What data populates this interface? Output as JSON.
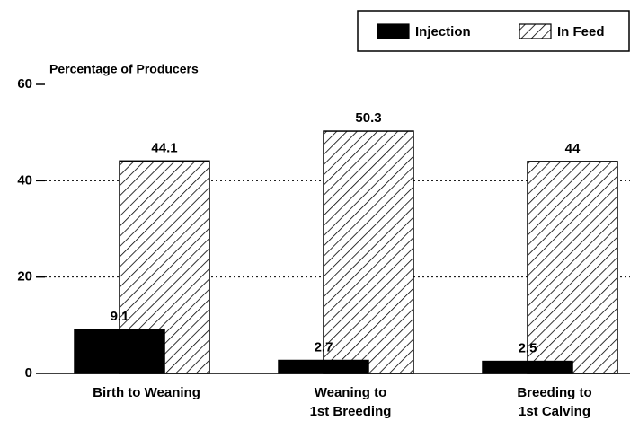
{
  "chart_data": {
    "type": "bar",
    "y_label": "Percentage of Producers",
    "categories": [
      "Birth to Weaning",
      "Weaning to\n1st Breeding",
      "Breeding to\n1st Calving"
    ],
    "series": [
      {
        "name": "Injection",
        "color": "#000000",
        "values": [
          9.1,
          2.7,
          2.5
        ]
      },
      {
        "name": "In Feed",
        "color": "#000000",
        "pattern": "hatch",
        "values": [
          44.1,
          50.3,
          44
        ]
      }
    ],
    "ylim": [
      0,
      60
    ],
    "yticks": [
      0,
      20,
      40,
      60
    ],
    "grid": true,
    "legend": "top-right"
  }
}
